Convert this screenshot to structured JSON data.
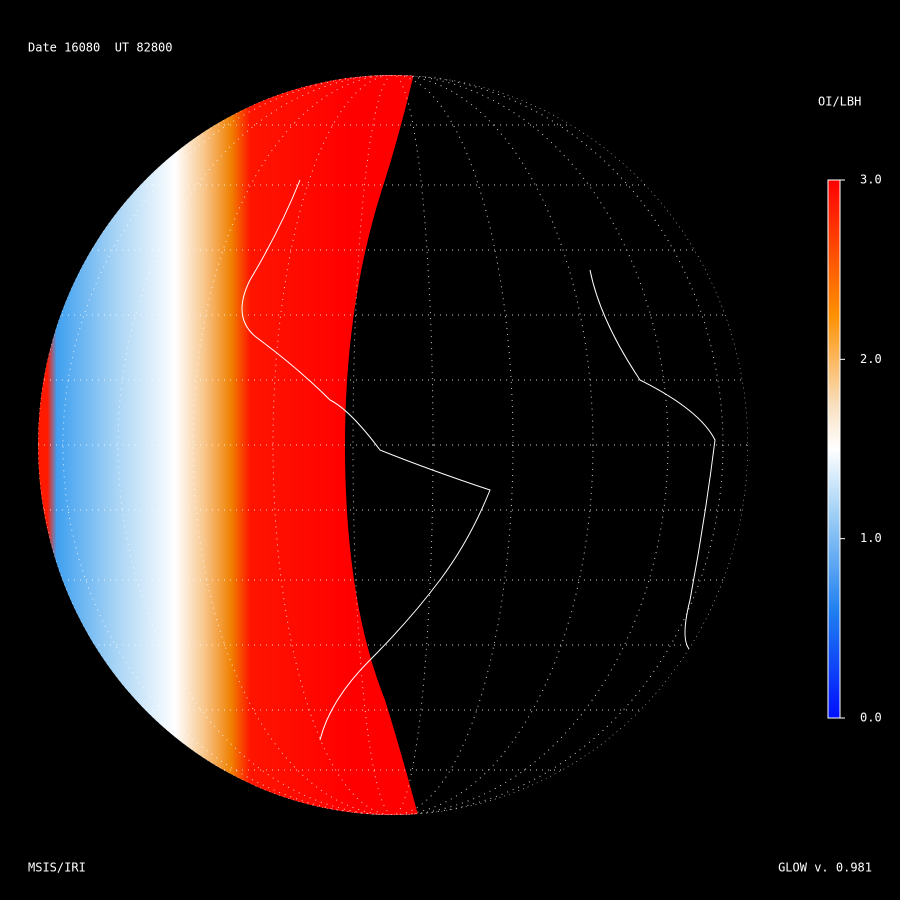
{
  "header": {
    "title": "Date 16080  UT 82800"
  },
  "colorbar": {
    "label": "OI/LBH",
    "range": [
      0,
      3
    ],
    "ticks": [
      {
        "value": 3,
        "label": "3.0"
      },
      {
        "value": 2,
        "label": "2.0"
      },
      {
        "value": 1,
        "label": "1.0"
      },
      {
        "value": 0,
        "label": "0.0"
      }
    ]
  },
  "footer": {
    "left": "MSIS/IRI",
    "right": "GLOW v. 0.981"
  }
}
